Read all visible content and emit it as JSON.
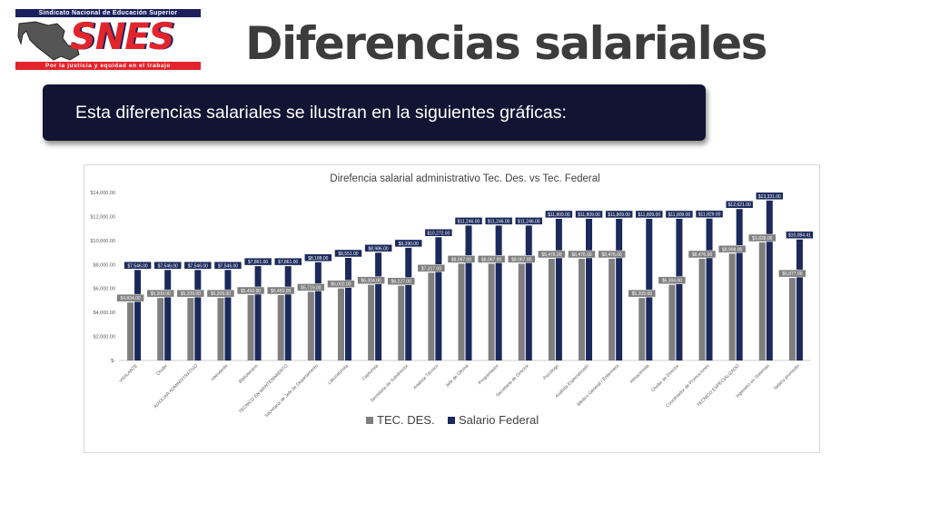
{
  "header": {
    "logo_top_text": "Sindicato Nacional de Educación Superior",
    "logo_name": "SNES",
    "logo_bottom_text": "Por la justicia y equidad en el trabajo",
    "title": "Diferencias salariales"
  },
  "banner": {
    "text": "Esta diferencias salariales se ilustran en la siguientes gráficas:"
  },
  "colors": {
    "tec_des": "#7f7f7f",
    "federal": "#1b2a5b",
    "label_bg_federal": "#1b2a5b",
    "label_bg_tec": "#7f7f7f"
  },
  "chart_data": {
    "type": "bar",
    "title": "Direfencia salarial administrativo Tec. Des. vs Tec. Federal",
    "xlabel": "",
    "ylabel": "",
    "ylim": [
      0,
      14000
    ],
    "ytick_labels": [
      "$-",
      "$2,000.00",
      "$4,000.00",
      "$6,000.00",
      "$8,000.00",
      "$10,000.00",
      "$12,000.00",
      "$14,000.00"
    ],
    "yticks": [
      0,
      2000,
      4000,
      6000,
      8000,
      10000,
      12000,
      14000
    ],
    "legend_position": "bottom",
    "grid": false,
    "categories": [
      "VIGILANTE",
      "Chofer",
      "AUXILIAR ADMINISTRATIVO",
      "Intendente",
      "Bibliotecario",
      "TECNICO EN MANTENIMIENTO",
      "Secretaria de Jefe de Departamento",
      "Laboratorista",
      "Capturista",
      "Secretaria de Subdirector",
      "Analista Técnico",
      "Jefe de Oficina",
      "Programador",
      "Secretaria de Director",
      "Psicólogo",
      "Analista Especializado",
      "Médico General / Enfermera",
      "Almacenista",
      "Chofer de Director",
      "Coordinador de Promociones",
      "TECNICO ESPECIALIZADO",
      "Ingeniero en Sistemas",
      "Salario promedio"
    ],
    "series": [
      {
        "name": "TEC. DES.",
        "values": [
          4834,
          5209,
          5209,
          5209,
          5450,
          5450,
          5719,
          6002,
          6304,
          6227,
          7317,
          8067,
          8067,
          8067,
          8476,
          8476,
          8476,
          5209,
          6304,
          8476,
          8908,
          9838,
          6877
        ],
        "labels": [
          "$4,834.00",
          "$5,209.00",
          "$5,209.00",
          "$5,209.00",
          "$5,450.00",
          "$5,450.00",
          "$5,719.00",
          "$6,002.00",
          "$6,304.00",
          "$6,227.00",
          "$7,317.00",
          "$8,067.00",
          "$8,067.00",
          "$8,067.00",
          "$8,476.00",
          "$8,476.00",
          "$8,476.00",
          "$5,209.00",
          "$6,304.00",
          "$8,476.00",
          "$8,908.00",
          "$9,838.00",
          "$6,877.00"
        ]
      },
      {
        "name": "Salario Federal",
        "values": [
          7546,
          7546,
          7546,
          7546,
          7861,
          7861,
          8188,
          8551,
          8986,
          9390,
          10272,
          11246,
          11246,
          11246,
          11809,
          11809,
          11809,
          11809,
          11809,
          11829,
          12621,
          13331,
          10084.41
        ],
        "labels": [
          "$7,546.00",
          "$7,546.00",
          "$7,546.00",
          "$7,546.00",
          "$7,861.00",
          "$7,861.00",
          "$8,188.00",
          "$8,551.00",
          "$8,986.00",
          "$9,390.00",
          "$10,272.00",
          "$11,246.00",
          "$11,246.00",
          "$11,246.00",
          "$11,809.00",
          "$11,809.00",
          "$11,809.00",
          "$11,809.00",
          "$11,809.00",
          "$11,829.00",
          "$12,621.00",
          "$13,331.00",
          "$10,084.41"
        ]
      }
    ]
  }
}
